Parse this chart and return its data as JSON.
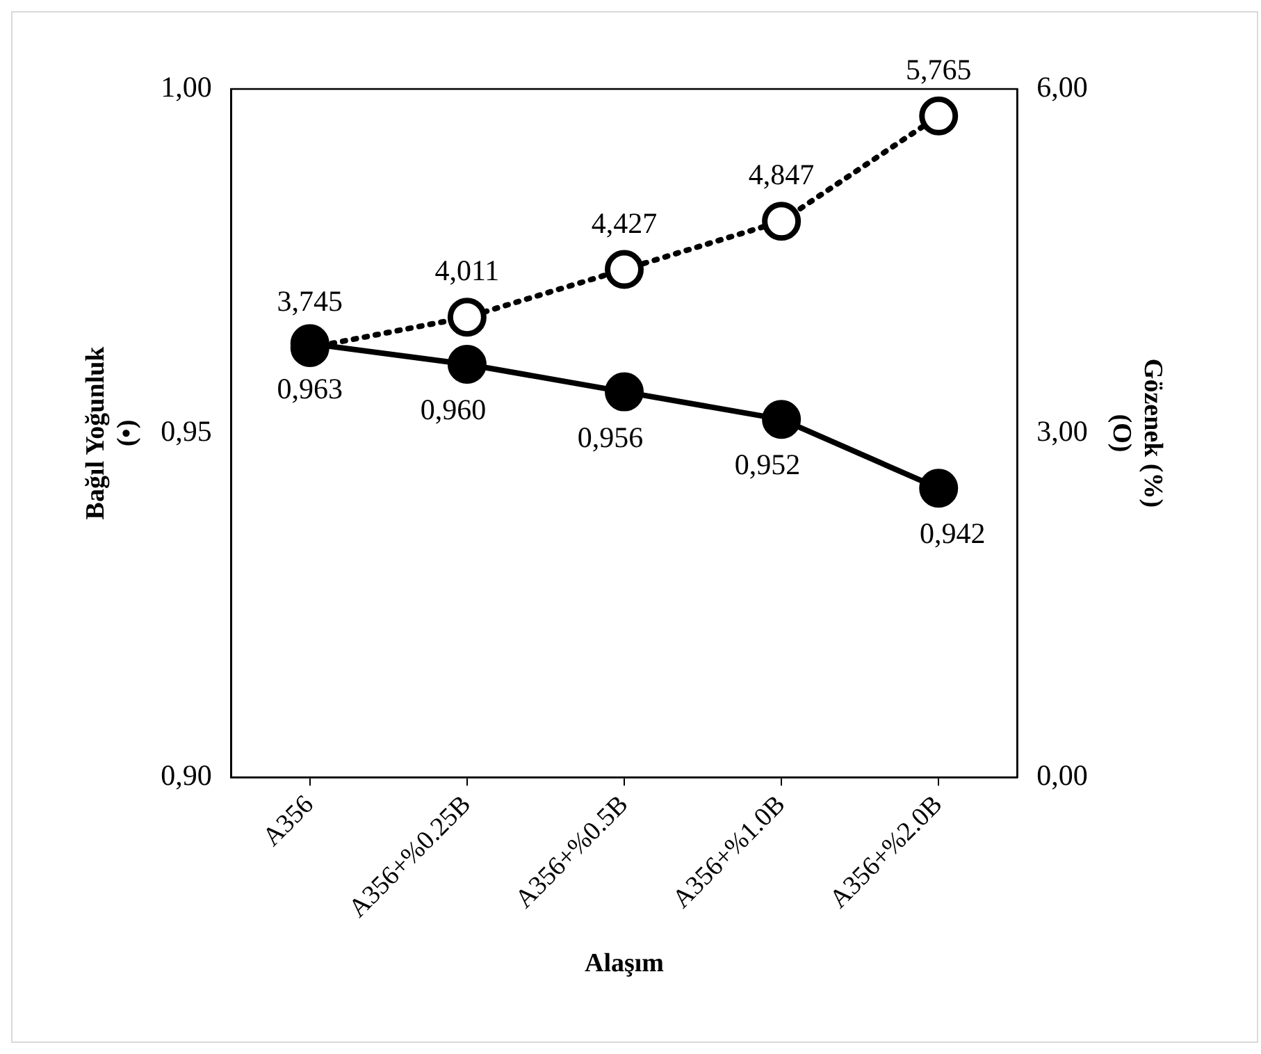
{
  "chart_data": {
    "type": "line",
    "xlabel": "Alaşım",
    "ylabel": "Bağıl Yoğunluk\n(•)",
    "y2label": "Gözenek (%)\n(O)",
    "categories": [
      "A356",
      "A356+%0.25B",
      "A356+%0.5B",
      "A356+%1.0B",
      "A356+%2.0B"
    ],
    "series": [
      {
        "color": "#000000",
        "values": [
          0.963,
          0.96,
          0.956,
          0.952,
          0.942
        ],
        "value_labels": [
          "0,963",
          "0,960",
          "0,956",
          "0,952",
          "0,942"
        ],
        "line_style": "solid",
        "marker": "circle"
      },
      {
        "color": "#000000",
        "axis": "y2",
        "values": [
          3.745,
          4.011,
          4.427,
          4.847,
          5.765
        ],
        "value_labels": [
          "3,745",
          "4,011",
          "4,427",
          "4,847",
          "5,765"
        ],
        "line_style": "dotted",
        "marker": "circle"
      }
    ],
    "ylim": [
      0.9,
      1.0
    ],
    "yticks": [
      {
        "value": 0.9,
        "label": "0,90"
      },
      {
        "value": 0.95,
        "label": "0,95"
      },
      {
        "value": 1.0,
        "label": "1,00"
      }
    ],
    "y2lim": [
      0,
      6
    ],
    "y2ticks": [
      {
        "value": 0,
        "label": "0,00"
      },
      {
        "value": 3,
        "label": "3,00"
      },
      {
        "value": 6,
        "label": "6,00"
      }
    ],
    "grid": false,
    "legend": false
  }
}
